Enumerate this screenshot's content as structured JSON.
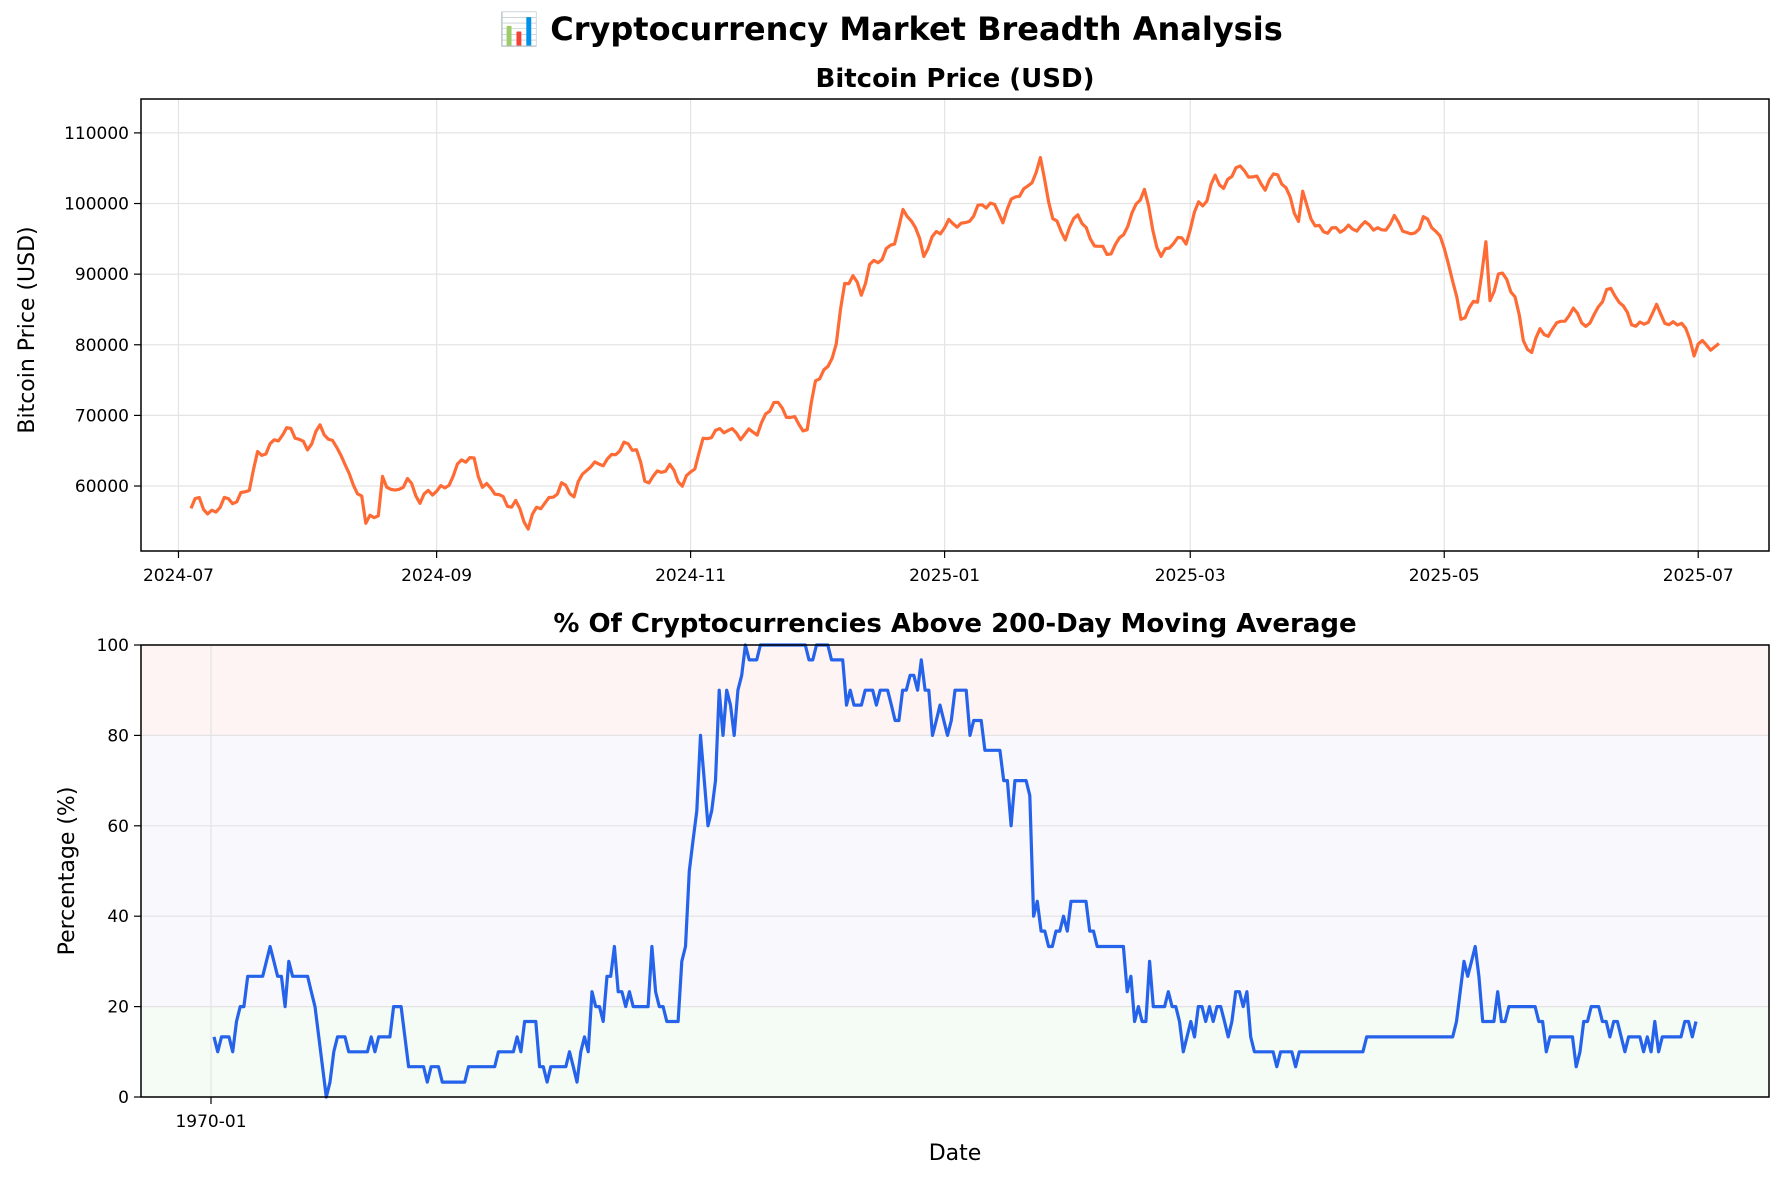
{
  "page": {
    "suptitle": "📊 Cryptocurrency Market Breadth Analysis"
  },
  "chart_data": [
    {
      "type": "line",
      "title": "Bitcoin Price (USD)",
      "xlabel": "",
      "ylabel": "Bitcoin Price (USD)",
      "x_start": "2024-07-04",
      "x_end": "2025-07-06",
      "xlim": [
        "2024-06-22",
        "2025-07-18"
      ],
      "ylim": [
        50800,
        114800
      ],
      "xtick_labels": [
        "2024-07",
        "2024-09",
        "2024-11",
        "2025-01",
        "2025-03",
        "2025-05",
        "2025-07"
      ],
      "xtick_dates": [
        "2024-07-01",
        "2024-09-01",
        "2024-11-01",
        "2025-01-01",
        "2025-03-01",
        "2025-05-01",
        "2025-07-01"
      ],
      "yticks": [
        60000,
        70000,
        80000,
        90000,
        100000,
        110000
      ],
      "grid": true,
      "series": [
        {
          "color": "#ff6b35",
          "anchors": [
            [
              "2024-07-04",
              56500
            ],
            [
              "2024-07-06",
              58300
            ],
            [
              "2024-07-08",
              56000
            ],
            [
              "2024-07-12",
              58000
            ],
            [
              "2024-07-15",
              57500
            ],
            [
              "2024-07-18",
              60000
            ],
            [
              "2024-07-20",
              64800
            ],
            [
              "2024-07-22",
              65000
            ],
            [
              "2024-07-25",
              66500
            ],
            [
              "2024-07-28",
              68200
            ],
            [
              "2024-08-01",
              65500
            ],
            [
              "2024-08-04",
              68000
            ],
            [
              "2024-08-07",
              66000
            ],
            [
              "2024-08-09",
              65200
            ],
            [
              "2024-08-11",
              61500
            ],
            [
              "2024-08-14",
              58000
            ],
            [
              "2024-08-15",
              54000
            ],
            [
              "2024-08-16",
              56000
            ],
            [
              "2024-08-18",
              55500
            ],
            [
              "2024-08-19",
              61500
            ],
            [
              "2024-08-22",
              59000
            ],
            [
              "2024-08-25",
              60500
            ],
            [
              "2024-08-28",
              58000
            ],
            [
              "2024-08-30",
              59500
            ],
            [
              "2024-09-03",
              59500
            ],
            [
              "2024-09-05",
              61000
            ],
            [
              "2024-09-07",
              64000
            ],
            [
              "2024-09-10",
              64000
            ],
            [
              "2024-09-12",
              60000
            ],
            [
              "2024-09-15",
              59000
            ],
            [
              "2024-09-18",
              57500
            ],
            [
              "2024-09-20",
              58000
            ],
            [
              "2024-09-23",
              54000
            ],
            [
              "2024-09-25",
              56500
            ],
            [
              "2024-09-28",
              58000
            ],
            [
              "2024-10-01",
              60500
            ],
            [
              "2024-10-04",
              58500
            ],
            [
              "2024-10-07",
              62500
            ],
            [
              "2024-10-10",
              63500
            ],
            [
              "2024-10-13",
              64000
            ],
            [
              "2024-10-16",
              65500
            ],
            [
              "2024-10-19",
              65500
            ],
            [
              "2024-10-21",
              61000
            ],
            [
              "2024-10-24",
              61500
            ],
            [
              "2024-10-27",
              62500
            ],
            [
              "2024-10-30",
              60500
            ],
            [
              "2024-11-02",
              63000
            ],
            [
              "2024-11-04",
              66000
            ],
            [
              "2024-11-07",
              67500
            ],
            [
              "2024-11-10",
              68500
            ],
            [
              "2024-11-13",
              67000
            ],
            [
              "2024-11-17",
              67500
            ],
            [
              "2024-11-21",
              72500
            ],
            [
              "2024-11-24",
              70000
            ],
            [
              "2024-11-27",
              68500
            ],
            [
              "2024-11-29",
              68000
            ],
            [
              "2024-12-01",
              75500
            ],
            [
              "2024-12-04",
              76500
            ],
            [
              "2024-12-06",
              80000
            ],
            [
              "2024-12-08",
              88500
            ],
            [
              "2024-12-10",
              90000
            ],
            [
              "2024-12-12",
              87500
            ],
            [
              "2024-12-14",
              91000
            ],
            [
              "2024-12-17",
              92000
            ],
            [
              "2024-12-20",
              95000
            ],
            [
              "2024-12-22",
              99000
            ],
            [
              "2024-12-24",
              98000
            ],
            [
              "2024-12-27",
              92500
            ],
            [
              "2024-12-30",
              96000
            ],
            [
              "2025-01-02",
              97500
            ],
            [
              "2025-01-06",
              96500
            ],
            [
              "2025-01-09",
              99500
            ],
            [
              "2025-01-12",
              100500
            ],
            [
              "2025-01-15",
              97500
            ],
            [
              "2025-01-18",
              101000
            ],
            [
              "2025-01-21",
              102500
            ],
            [
              "2025-01-24",
              106000
            ],
            [
              "2025-01-27",
              97500
            ],
            [
              "2025-01-30",
              95500
            ],
            [
              "2025-02-02",
              99000
            ],
            [
              "2025-02-05",
              94500
            ],
            [
              "2025-02-09",
              93000
            ],
            [
              "2025-02-12",
              95000
            ],
            [
              "2025-02-15",
              98000
            ],
            [
              "2025-02-18",
              102000
            ],
            [
              "2025-02-20",
              96500
            ],
            [
              "2025-02-22",
              92700
            ],
            [
              "2025-02-25",
              94500
            ],
            [
              "2025-02-28",
              94500
            ],
            [
              "2025-03-03",
              100500
            ],
            [
              "2025-03-05",
              100500
            ],
            [
              "2025-03-07",
              104000
            ],
            [
              "2025-03-09",
              101500
            ],
            [
              "2025-03-12",
              105500
            ],
            [
              "2025-03-15",
              104500
            ],
            [
              "2025-03-19",
              102000
            ],
            [
              "2025-03-22",
              104500
            ],
            [
              "2025-03-25",
              101000
            ],
            [
              "2025-03-27",
              97500
            ],
            [
              "2025-03-28",
              101000
            ],
            [
              "2025-03-31",
              96500
            ],
            [
              "2025-04-05",
              96500
            ],
            [
              "2025-04-09",
              96000
            ],
            [
              "2025-04-13",
              97500
            ],
            [
              "2025-04-16",
              96000
            ],
            [
              "2025-04-19",
              97500
            ],
            [
              "2025-04-23",
              95500
            ],
            [
              "2025-04-26",
              98000
            ],
            [
              "2025-04-29",
              96000
            ],
            [
              "2025-05-02",
              92000
            ],
            [
              "2025-05-05",
              84000
            ],
            [
              "2025-05-07",
              85000
            ],
            [
              "2025-05-09",
              86000
            ],
            [
              "2025-05-11",
              94000
            ],
            [
              "2025-05-12",
              86000
            ],
            [
              "2025-05-14",
              90500
            ],
            [
              "2025-05-16",
              89500
            ],
            [
              "2025-05-18",
              86500
            ],
            [
              "2025-05-20",
              80500
            ],
            [
              "2025-05-22",
              78500
            ],
            [
              "2025-05-24",
              83000
            ],
            [
              "2025-05-26",
              81000
            ],
            [
              "2025-05-28",
              83500
            ],
            [
              "2025-05-30",
              82500
            ],
            [
              "2025-06-01",
              85500
            ],
            [
              "2025-06-03",
              83000
            ],
            [
              "2025-06-06",
              84000
            ],
            [
              "2025-06-09",
              87500
            ],
            [
              "2025-06-12",
              86500
            ],
            [
              "2025-06-15",
              83500
            ],
            [
              "2025-06-18",
              82500
            ],
            [
              "2025-06-21",
              85000
            ],
            [
              "2025-06-24",
              83000
            ],
            [
              "2025-06-27",
              83500
            ],
            [
              "2025-06-30",
              78500
            ],
            [
              "2025-07-01",
              80000
            ]
          ]
        }
      ]
    },
    {
      "type": "line",
      "title": "% Of Cryptocurrencies Above 200-Day Moving Average",
      "xlabel": "Date",
      "ylabel": "Percentage (%)",
      "ylim": [
        0,
        100
      ],
      "yticks": [
        0,
        20,
        40,
        60,
        80,
        100
      ],
      "xtick_labels": [
        "1970-01"
      ],
      "grid": true,
      "shaded_bands": [
        {
          "from": 80,
          "to": 100,
          "color": "#fdecec"
        },
        {
          "from": 20,
          "to": 80,
          "color": "#f4f4fb"
        },
        {
          "from": 0,
          "to": 20,
          "color": "#eef8ee"
        }
      ],
      "series": [
        {
          "color": "#2563eb",
          "values": [
            13.3,
            10,
            13.3,
            13.3,
            13.3,
            10,
            16.7,
            20,
            20,
            26.7,
            26.7,
            26.7,
            26.7,
            26.7,
            30,
            33.3,
            30,
            26.7,
            26.7,
            20,
            30,
            26.7,
            26.7,
            26.7,
            26.7,
            26.7,
            23.3,
            20,
            13.3,
            6.7,
            0,
            3.3,
            10,
            13.3,
            13.3,
            13.3,
            10,
            10,
            10,
            10,
            10,
            10,
            13.3,
            10,
            13.3,
            13.3,
            13.3,
            13.3,
            20,
            20,
            20,
            13.3,
            6.7,
            6.7,
            6.7,
            6.7,
            6.7,
            3.3,
            6.7,
            6.7,
            6.7,
            3.3,
            3.3,
            3.3,
            3.3,
            3.3,
            3.3,
            3.3,
            6.7,
            6.7,
            6.7,
            6.7,
            6.7,
            6.7,
            6.7,
            6.7,
            10,
            10,
            10,
            10,
            10,
            13.3,
            10,
            16.7,
            16.7,
            16.7,
            16.7,
            6.7,
            6.7,
            3.3,
            6.7,
            6.7,
            6.7,
            6.7,
            6.7,
            10,
            6.7,
            3.3,
            10,
            13.3,
            10,
            23.3,
            20,
            20,
            16.7,
            26.7,
            26.7,
            33.3,
            23.3,
            23.3,
            20,
            23.3,
            20,
            20,
            20,
            20,
            20,
            33.3,
            23.3,
            20,
            20,
            16.7,
            16.7,
            16.7,
            16.7,
            30,
            33.3,
            50,
            56.7,
            63.3,
            80,
            70,
            60,
            63.3,
            70,
            90,
            80,
            90,
            86.7,
            80,
            90,
            93.3,
            100,
            96.7,
            96.7,
            96.7,
            100,
            100,
            100,
            100,
            100,
            100,
            100,
            100,
            100,
            100,
            100,
            100,
            100,
            96.7,
            96.7,
            100,
            100,
            100,
            100,
            96.7,
            96.7,
            96.7,
            96.7,
            86.7,
            90,
            86.7,
            86.7,
            86.7,
            90,
            90,
            90,
            86.7,
            90,
            90,
            90,
            86.7,
            83.3,
            83.3,
            90,
            90,
            93.3,
            93.3,
            90,
            96.7,
            90,
            90,
            80,
            83.3,
            86.7,
            83.3,
            80,
            83.3,
            90,
            90,
            90,
            90,
            80,
            83.3,
            83.3,
            83.3,
            76.7,
            76.7,
            76.7,
            76.7,
            76.7,
            70,
            70,
            60,
            70,
            70,
            70,
            70,
            66.7,
            40,
            43.3,
            36.7,
            36.7,
            33.3,
            33.3,
            36.7,
            36.7,
            40,
            36.7,
            43.3,
            43.3,
            43.3,
            43.3,
            43.3,
            36.7,
            36.7,
            33.3,
            33.3,
            33.3,
            33.3,
            33.3,
            33.3,
            33.3,
            33.3,
            23.3,
            26.7,
            16.7,
            20,
            16.7,
            16.7,
            30,
            20,
            20,
            20,
            20,
            23.3,
            20,
            20,
            16.7,
            10,
            13.3,
            16.7,
            13.3,
            20,
            20,
            16.7,
            20,
            16.7,
            20,
            20,
            16.7,
            13.3,
            16.7,
            23.3,
            23.3,
            20,
            23.3,
            13.3,
            10,
            10,
            10,
            10,
            10,
            10,
            6.7,
            10,
            10,
            10,
            10,
            6.7,
            10,
            10,
            10,
            10,
            10,
            10,
            10,
            10,
            10,
            10,
            10,
            10,
            10,
            10,
            10,
            10,
            10,
            10,
            13.3,
            13.3,
            13.3,
            13.3,
            13.3,
            13.3,
            13.3,
            13.3,
            13.3,
            13.3,
            13.3,
            13.3,
            13.3,
            13.3,
            13.3,
            13.3,
            13.3,
            13.3,
            13.3,
            13.3,
            13.3,
            13.3,
            13.3,
            13.3,
            16.7,
            23.3,
            30,
            26.7,
            30,
            33.3,
            26.7,
            16.7,
            16.7,
            16.7,
            16.7,
            23.3,
            16.7,
            16.7,
            20,
            20,
            20,
            20,
            20,
            20,
            20,
            20,
            16.7,
            16.7,
            10,
            13.3,
            13.3,
            13.3,
            13.3,
            13.3,
            13.3,
            13.3,
            6.7,
            10,
            16.7,
            16.7,
            20,
            20,
            20,
            16.7,
            16.7,
            13.3,
            16.7,
            16.7,
            13.3,
            10,
            13.3,
            13.3,
            13.3,
            13.3,
            10,
            13.3,
            10,
            16.7,
            10,
            13.3,
            13.3,
            13.3,
            13.3,
            13.3,
            13.3,
            16.7,
            16.7,
            13.3,
            16.7
          ]
        }
      ]
    }
  ],
  "colors": {
    "btc_line": "#ff6b35",
    "breadth_line": "#2563eb",
    "grid": "#e6e6e6"
  }
}
